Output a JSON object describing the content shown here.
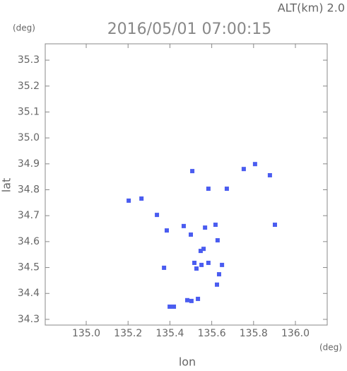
{
  "chart_data": {
    "type": "scatter",
    "title": "2016/05/01 07:00:15",
    "subtitle": "ALT(km) 2.0",
    "y_unit": "(deg)",
    "x_unit": "(deg)",
    "xlabel": "lon",
    "ylabel": "lat",
    "color": "#4a5cf0",
    "xlim": [
      134.804,
      136.152
    ],
    "ylim": [
      34.278,
      35.363
    ],
    "xticks": [
      {
        "value": 135.0,
        "label": "135.0"
      },
      135.2,
      135.4,
      135.6,
      135.8,
      {
        "value": 136.0,
        "label": "136.0"
      }
    ],
    "yticks": [
      34.3,
      34.4,
      34.5,
      34.6,
      34.7,
      34.8,
      34.9,
      {
        "value": 35.0,
        "label": "35.0"
      },
      35.1,
      35.2,
      35.3
    ],
    "x": [
      135.203,
      135.264,
      135.338,
      135.507,
      135.584,
      135.672,
      135.753,
      135.807,
      135.878,
      135.902,
      135.385,
      135.466,
      135.5,
      135.568,
      135.618,
      135.628,
      135.547,
      135.561,
      135.517,
      135.551,
      135.584,
      135.527,
      135.649,
      135.635,
      135.625,
      135.372,
      135.399,
      135.419,
      135.483,
      135.503,
      135.534
    ],
    "values": [
      34.758,
      34.766,
      34.703,
      34.872,
      34.804,
      34.804,
      34.88,
      34.899,
      34.856,
      34.665,
      34.643,
      34.66,
      34.627,
      34.654,
      34.665,
      34.605,
      34.564,
      34.572,
      34.518,
      34.51,
      34.518,
      34.496,
      34.51,
      34.474,
      34.434,
      34.499,
      34.349,
      34.349,
      34.374,
      34.371,
      34.379
    ]
  }
}
